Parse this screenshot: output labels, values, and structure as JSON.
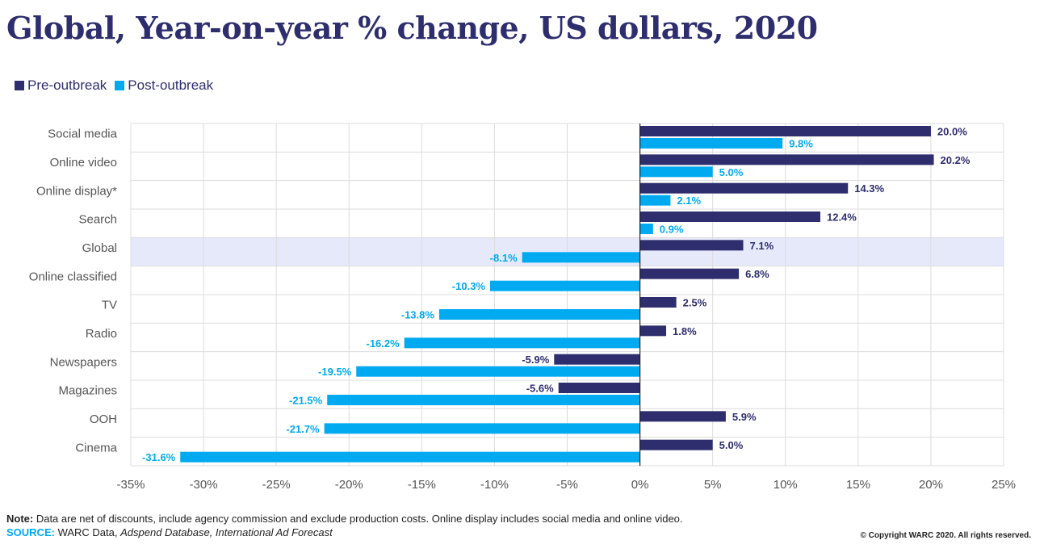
{
  "title": "Global, Year-on-year % change, US dollars, 2020",
  "colors": {
    "pre": "#2e2e6e",
    "post": "#00aaf0",
    "highlight": "#e6e9fa",
    "grid": "#dcdcdc"
  },
  "legend": {
    "pre": "Pre-outbreak",
    "post": "Post-outbreak"
  },
  "footer": {
    "note_label": "Note:",
    "note_text": " Data are net of discounts, include agency commission and exclude production costs. Online display includes social media and online video.",
    "source_label": "SOURCE:",
    "source_text_1": " WARC Data, ",
    "source_text_2": "Adspend Database, International Ad Forecast",
    "copyright": "© Copyright WARC 2020. All rights reserved."
  },
  "chart_data": {
    "type": "bar",
    "orientation": "horizontal",
    "categories": [
      "Social media",
      "Online video",
      "Online display*",
      "Search",
      "Global",
      "Online classified",
      "TV",
      "Radio",
      "Newspapers",
      "Magazines",
      "OOH",
      "Cinema"
    ],
    "series": [
      {
        "name": "Pre-outbreak",
        "values": [
          20.0,
          20.2,
          14.3,
          12.4,
          7.1,
          6.8,
          2.5,
          1.8,
          -5.9,
          -5.6,
          5.9,
          5.0
        ]
      },
      {
        "name": "Post-outbreak",
        "values": [
          9.8,
          5.0,
          2.1,
          0.9,
          -8.1,
          -10.3,
          -13.8,
          -16.2,
          -19.5,
          -21.5,
          -21.7,
          -31.6
        ]
      }
    ],
    "xlim": [
      -35,
      25
    ],
    "xticks": [
      -35,
      -30,
      -25,
      -20,
      -15,
      -10,
      -5,
      0,
      5,
      10,
      15,
      20,
      25
    ],
    "highlight_category": "Global",
    "grid": true,
    "legend_position": "top-left"
  }
}
